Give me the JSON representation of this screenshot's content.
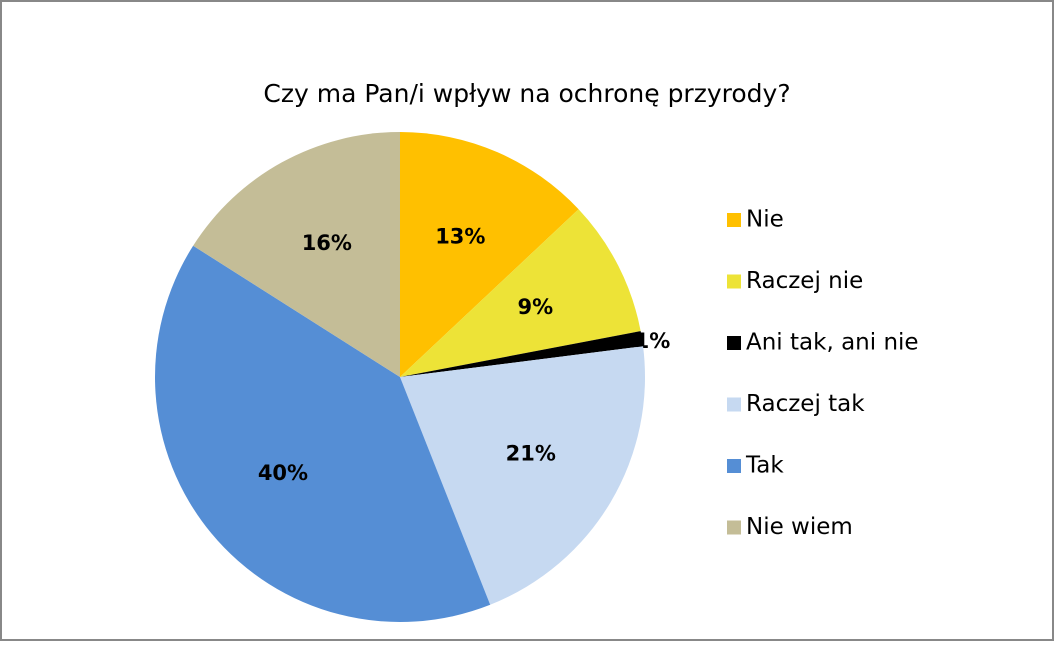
{
  "chart_data": {
    "type": "pie",
    "title": "Czy ma Pan/i wpływ na ochronę przyrody?",
    "categories": [
      "Nie",
      "Raczej nie",
      "Ani tak, ani nie",
      "Raczej tak",
      "Tak",
      "Nie wiem"
    ],
    "values": [
      13,
      9,
      1,
      21,
      40,
      16
    ],
    "value_labels": [
      "13%",
      "9%",
      "1%",
      "21%",
      "40%",
      "16%"
    ],
    "colors": [
      "#ffc000",
      "#ede337",
      "#000000",
      "#c6d9f1",
      "#558ed5",
      "#c4bd97"
    ],
    "legend": "right"
  }
}
